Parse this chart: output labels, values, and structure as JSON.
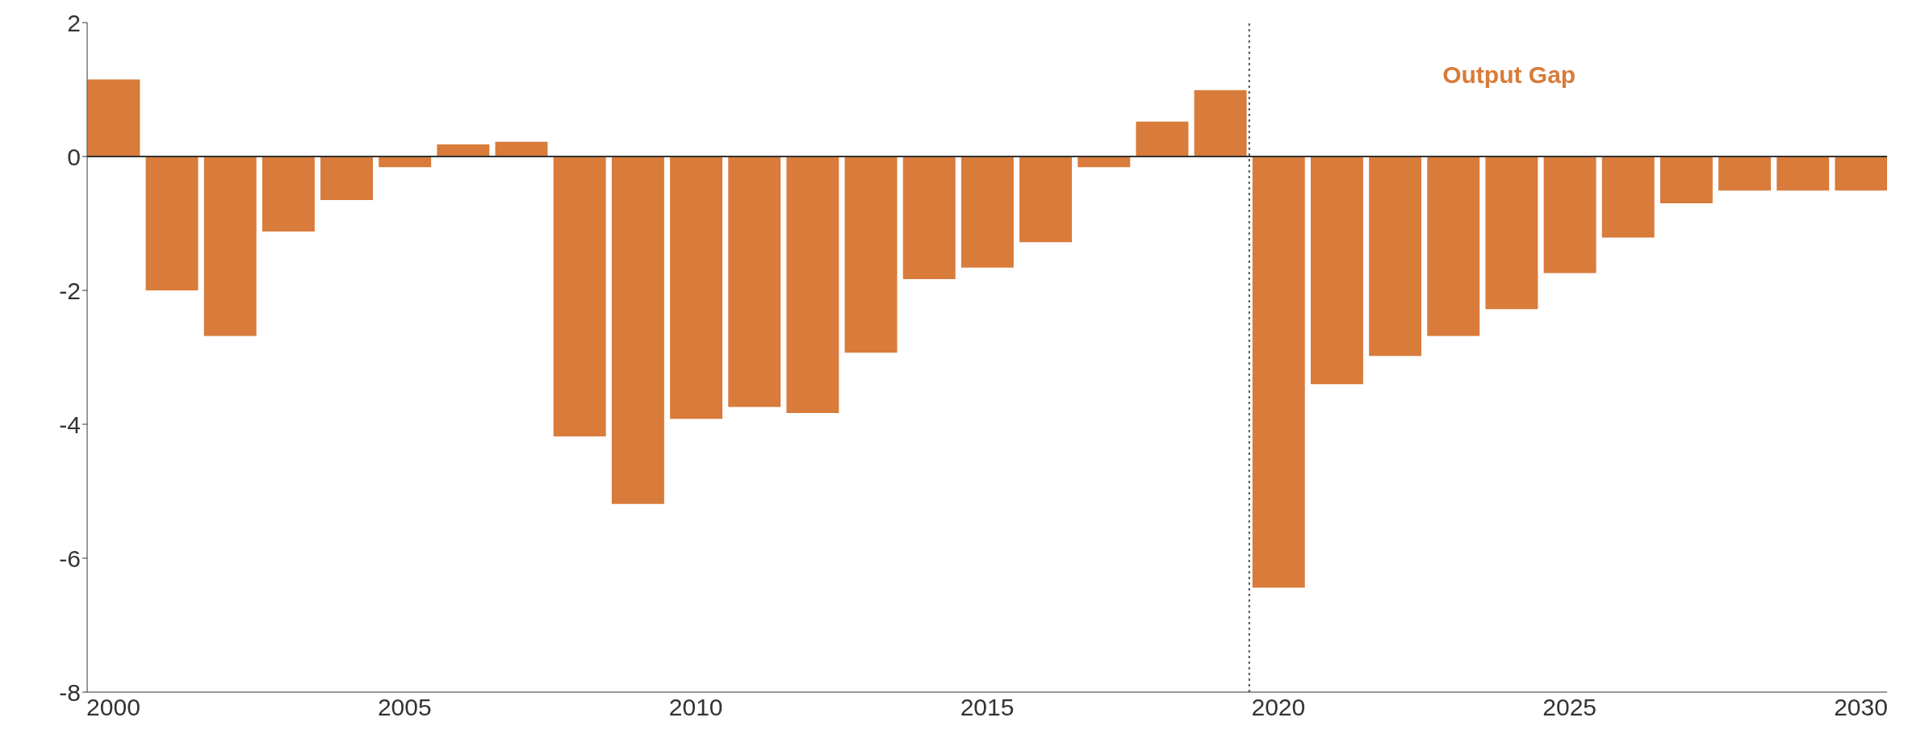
{
  "chart_data": {
    "type": "bar",
    "x": [
      2000,
      2001,
      2002,
      2003,
      2004,
      2005,
      2006,
      2007,
      2008,
      2009,
      2010,
      2011,
      2012,
      2013,
      2014,
      2015,
      2016,
      2017,
      2018,
      2019,
      2020,
      2021,
      2022,
      2023,
      2024,
      2025,
      2026,
      2027,
      2028,
      2029,
      2030
    ],
    "values": [
      1.15,
      -2.0,
      -2.68,
      -1.12,
      -0.65,
      -0.16,
      0.18,
      0.22,
      -4.18,
      -5.19,
      -3.92,
      -3.74,
      -3.83,
      -2.93,
      -1.83,
      -1.66,
      -1.28,
      -0.16,
      0.52,
      0.99,
      -6.44,
      -3.4,
      -2.98,
      -2.68,
      -2.28,
      -1.74,
      -1.21,
      -0.7,
      -0.51,
      -0.51,
      -0.51
    ],
    "color": "#d97b3a",
    "xlim": [
      1999.55,
      2030.45
    ],
    "xticks": [
      2000,
      2005,
      2010,
      2015,
      2020,
      2025,
      2030
    ],
    "ylim": [
      -8,
      2
    ],
    "yticks": [
      -8,
      -6,
      -4,
      -2,
      0,
      2
    ],
    "grid": false,
    "legend": false,
    "ref_lines": [
      {
        "axis": "x",
        "value": 2019.5,
        "line_style": "dotted",
        "color": "#555555"
      },
      {
        "axis": "y",
        "value": 0,
        "line_style": "solid",
        "color": "#333333"
      }
    ],
    "annotations": [
      "Output Gap"
    ]
  }
}
